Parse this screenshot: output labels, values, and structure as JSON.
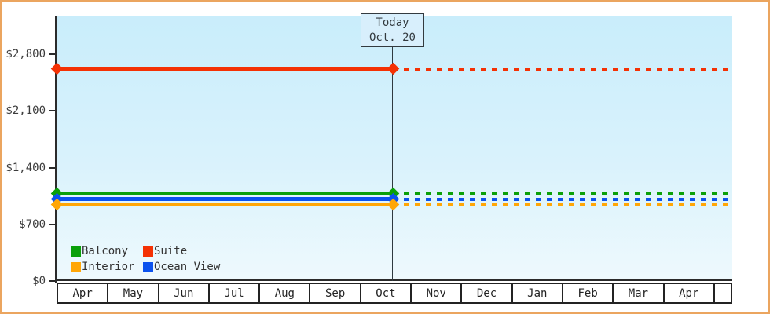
{
  "window": {
    "border_color": "#eba55f"
  },
  "today_annotation": {
    "line1": "Today",
    "line2": "Oct. 20"
  },
  "legend": [
    {
      "label": "Balcony",
      "color": "#0aa00a"
    },
    {
      "label": "Suite",
      "color": "#f43104"
    },
    {
      "label": "Interior",
      "color": "#ffa607"
    },
    {
      "label": "Ocean View",
      "color": "#0b52ee"
    }
  ],
  "chart_data": {
    "type": "line",
    "x_categories": [
      "Apr",
      "May",
      "Jun",
      "Jul",
      "Aug",
      "Sep",
      "Oct",
      "Nov",
      "Dec",
      "Jan",
      "Feb",
      "Mar",
      "Apr"
    ],
    "y_tick_values": [
      0,
      700,
      1400,
      2100,
      2800
    ],
    "y_tick_labels": [
      "$0",
      "$700",
      "$1,400",
      "$2,100",
      "$2,800"
    ],
    "ylim": [
      0,
      3275
    ],
    "grid": false,
    "legend_position": "bottom-left",
    "today_marker": {
      "label": "Today Oct. 20",
      "month": "Oct",
      "x_fraction": 0.498
    },
    "series": [
      {
        "name": "Suite",
        "color": "#f43104",
        "value": 2620,
        "left_style": "solid",
        "right_style": "dotted"
      },
      {
        "name": "Balcony",
        "color": "#0aa00a",
        "value": 1080,
        "left_style": "solid",
        "right_style": "dotted"
      },
      {
        "name": "Ocean View",
        "color": "#0b52ee",
        "value": 1010,
        "left_style": "solid",
        "right_style": "dotted"
      },
      {
        "name": "Interior",
        "color": "#ffa607",
        "value": 940,
        "left_style": "solid",
        "right_style": "dotted"
      }
    ]
  }
}
